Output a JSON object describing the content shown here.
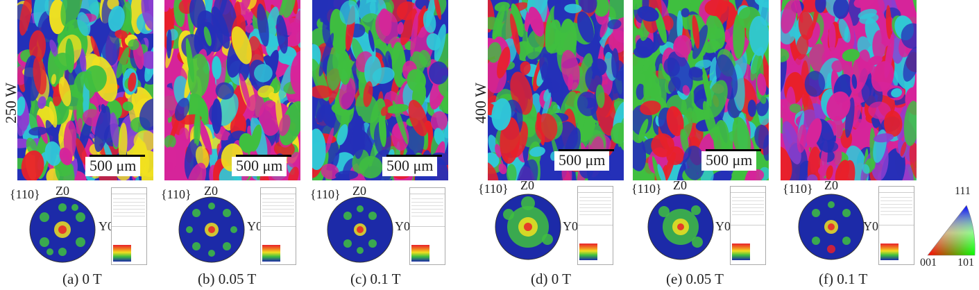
{
  "scale_label": "500 μm",
  "power_labels": [
    "250 W",
    "400 W"
  ],
  "pole_figure": {
    "family": "{110}",
    "z_axis": "Z0",
    "y_axis": "Y0"
  },
  "captions": [
    "(a) 0 T",
    "(b) 0.05 T",
    "(c) 0.1 T",
    "(d) 0 T",
    "(e) 0.05 T",
    "(f) 0.1 T"
  ],
  "ipf_key": {
    "top": "111",
    "bottom_left": "001",
    "bottom_right": "101"
  },
  "colors": {
    "red": "#e8202a",
    "green": "#3fbf3f",
    "blue": "#2430b8",
    "magenta": "#d6249a",
    "cyan": "#30c8d8",
    "yellow": "#f0e020"
  }
}
